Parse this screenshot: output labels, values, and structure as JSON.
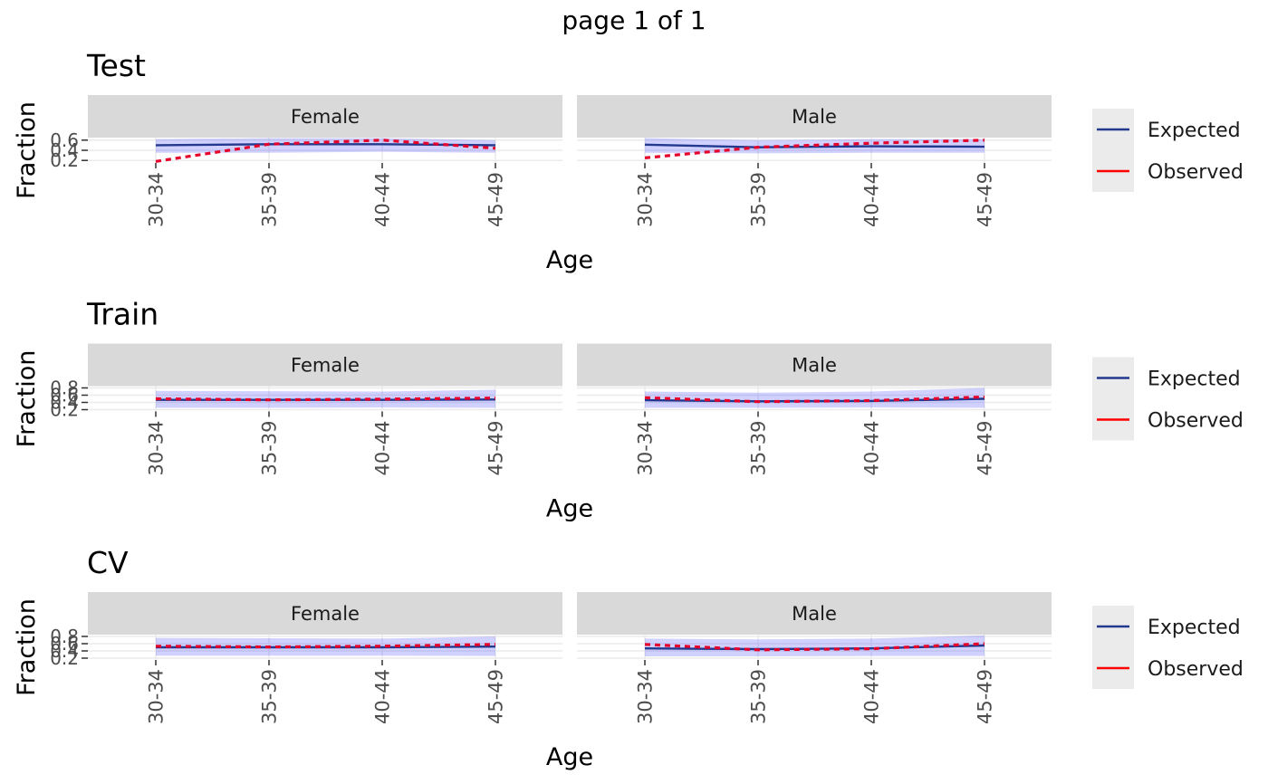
{
  "page_title": "page 1 of 1",
  "chart_data": [
    {
      "type": "line",
      "title": "Test",
      "xlabel": "Age",
      "ylabel": "Fraction",
      "categories": [
        "30-34",
        "35-39",
        "40-44",
        "45-49"
      ],
      "yticks": [
        0.2,
        0.4,
        0.6
      ],
      "ylim": [
        0.15,
        0.65
      ],
      "facets": [
        {
          "label": "Female",
          "series": [
            {
              "name": "Expected",
              "values": [
                0.5,
                0.52,
                0.52,
                0.5
              ]
            },
            {
              "name": "Observed",
              "values": [
                0.18,
                0.52,
                0.6,
                0.44
              ]
            }
          ],
          "band": {
            "lower": [
              0.35,
              0.35,
              0.37,
              0.35
            ],
            "upper": [
              0.62,
              0.64,
              0.64,
              0.6
            ]
          }
        },
        {
          "label": "Male",
          "series": [
            {
              "name": "Expected",
              "values": [
                0.51,
                0.46,
                0.48,
                0.47
              ]
            },
            {
              "name": "Observed",
              "values": [
                0.25,
                0.46,
                0.54,
                0.6
              ]
            }
          ],
          "band": {
            "lower": [
              0.35,
              0.34,
              0.35,
              0.35
            ],
            "upper": [
              0.64,
              0.6,
              0.62,
              0.62
            ]
          }
        }
      ]
    },
    {
      "type": "line",
      "title": "Train",
      "xlabel": "Age",
      "ylabel": "Fraction",
      "categories": [
        "30-34",
        "35-39",
        "40-44",
        "45-49"
      ],
      "yticks": [
        0.2,
        0.4,
        0.6,
        0.8
      ],
      "ylim": [
        0.15,
        0.85
      ],
      "facets": [
        {
          "label": "Female",
          "series": [
            {
              "name": "Expected",
              "values": [
                0.47,
                0.47,
                0.47,
                0.48
              ]
            },
            {
              "name": "Observed",
              "values": [
                0.5,
                0.47,
                0.49,
                0.52
              ]
            }
          ],
          "band": {
            "lower": [
              0.25,
              0.25,
              0.26,
              0.25
            ],
            "upper": [
              0.72,
              0.71,
              0.7,
              0.75
            ]
          }
        },
        {
          "label": "Male",
          "series": [
            {
              "name": "Expected",
              "values": [
                0.46,
                0.43,
                0.44,
                0.5
              ]
            },
            {
              "name": "Observed",
              "values": [
                0.53,
                0.42,
                0.45,
                0.55
              ]
            }
          ],
          "band": {
            "lower": [
              0.25,
              0.25,
              0.26,
              0.25
            ],
            "upper": [
              0.7,
              0.67,
              0.7,
              0.8
            ]
          }
        }
      ]
    },
    {
      "type": "line",
      "title": "CV",
      "xlabel": "Age",
      "ylabel": "Fraction",
      "categories": [
        "30-34",
        "35-39",
        "40-44",
        "45-49"
      ],
      "yticks": [
        0.2,
        0.4,
        0.6,
        0.8
      ],
      "ylim": [
        0.15,
        0.85
      ],
      "facets": [
        {
          "label": "Female",
          "series": [
            {
              "name": "Expected",
              "values": [
                0.5,
                0.5,
                0.5,
                0.52
              ]
            },
            {
              "name": "Observed",
              "values": [
                0.53,
                0.51,
                0.53,
                0.58
              ]
            }
          ],
          "band": {
            "lower": [
              0.27,
              0.27,
              0.27,
              0.26
            ],
            "upper": [
              0.76,
              0.75,
              0.74,
              0.8
            ]
          }
        },
        {
          "label": "Male",
          "series": [
            {
              "name": "Expected",
              "values": [
                0.47,
                0.45,
                0.47,
                0.55
              ]
            },
            {
              "name": "Observed",
              "values": [
                0.58,
                0.43,
                0.46,
                0.6
              ]
            }
          ],
          "band": {
            "lower": [
              0.25,
              0.25,
              0.26,
              0.26
            ],
            "upper": [
              0.74,
              0.72,
              0.74,
              0.83
            ]
          }
        }
      ]
    }
  ],
  "legend": {
    "items": [
      {
        "label": "Expected",
        "color": "#22398e"
      },
      {
        "label": "Observed",
        "color": "#ff0000"
      }
    ]
  },
  "colors": {
    "expected_line": "#22398e",
    "observed_line": "#e4002b",
    "band_fill": "#0000ff",
    "strip_bg": "#d9d9d9",
    "legend_bg": "#ebebeb",
    "grid": "#ebebeb"
  }
}
